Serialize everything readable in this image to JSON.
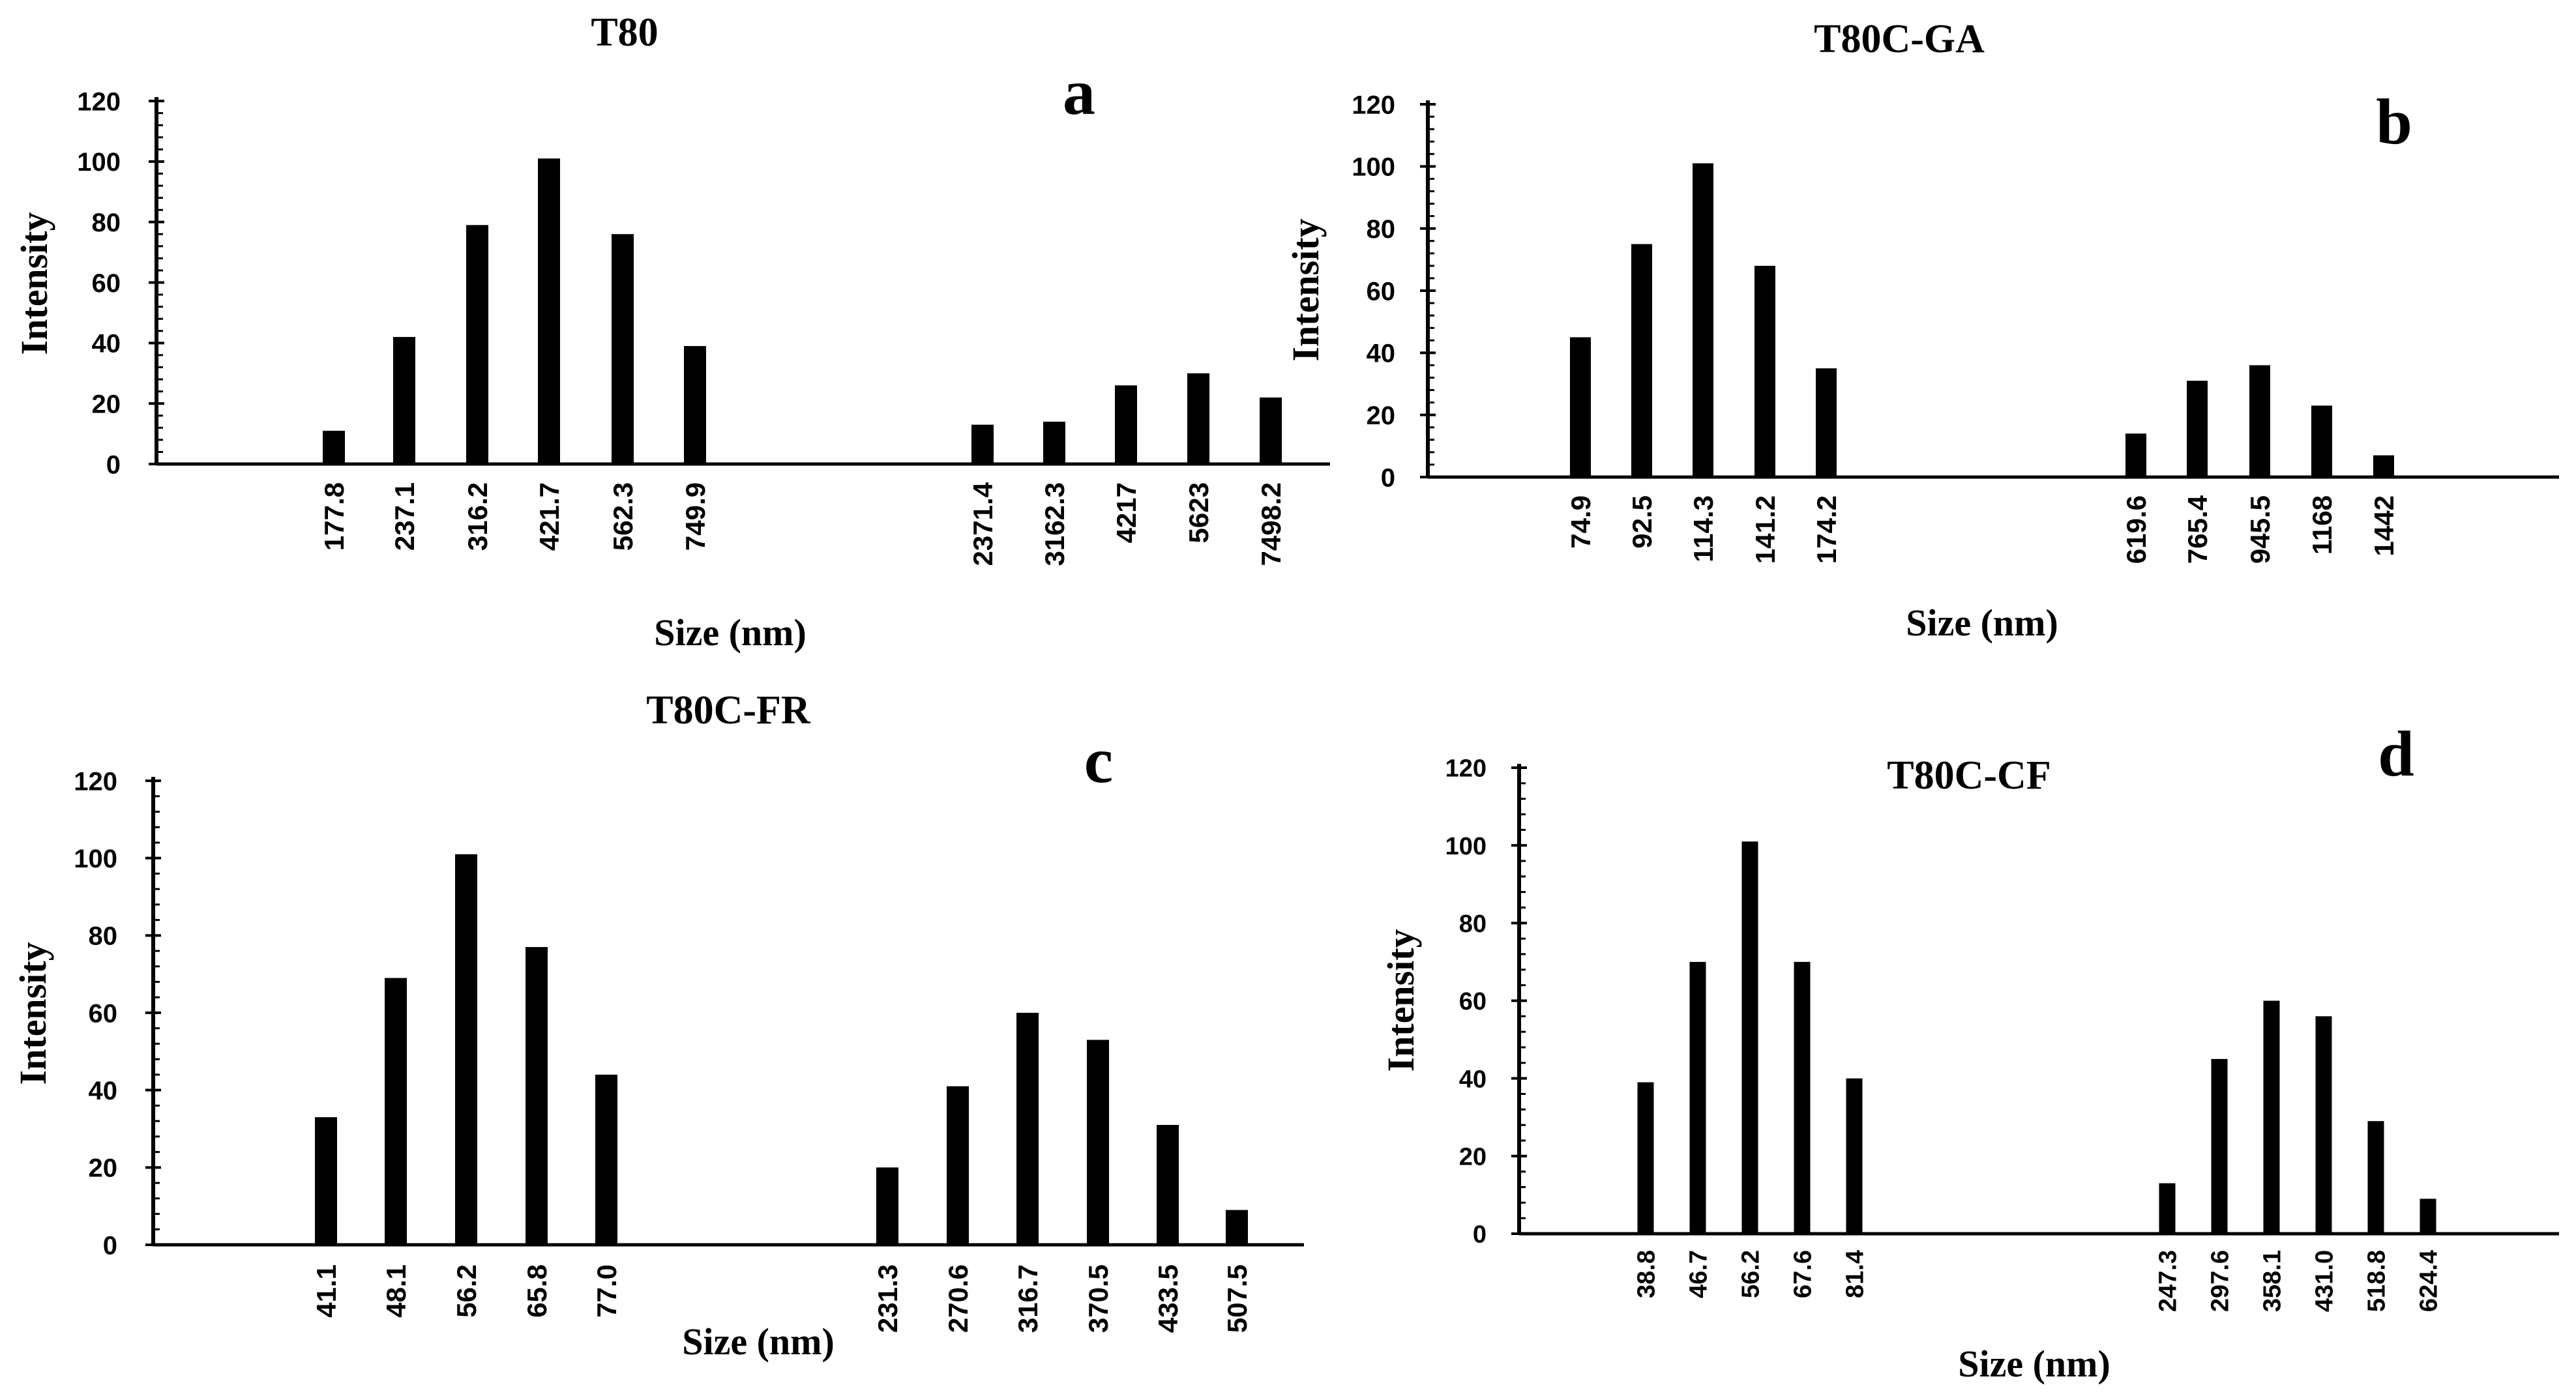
{
  "chart_data": [
    {
      "panel": "a",
      "type": "bar",
      "title": "T80",
      "xlabel": "Size (nm)",
      "ylabel": "Intensity",
      "ylim": [
        0,
        120
      ],
      "yticks": [
        0,
        20,
        40,
        60,
        80,
        100,
        120
      ],
      "grid": false,
      "categories": [
        "177.8",
        "237.1",
        "316.2",
        "421.7",
        "562.3",
        "749.9",
        "2371.4",
        "3162.3",
        "4217",
        "5623",
        "7498.2"
      ],
      "values": [
        11,
        42,
        79,
        101,
        76,
        39,
        13,
        14,
        26,
        30,
        22
      ]
    },
    {
      "panel": "b",
      "type": "bar",
      "title": "T80C-GA",
      "xlabel": "Size (nm)",
      "ylabel": "Intensity",
      "ylim": [
        0,
        120
      ],
      "yticks": [
        0,
        20,
        40,
        60,
        80,
        100,
        120
      ],
      "grid": false,
      "categories": [
        "74.9",
        "92.5",
        "114.3",
        "141.2",
        "174.2",
        "619.6",
        "765.4",
        "945.5",
        "1168",
        "1442"
      ],
      "values": [
        45,
        75,
        101,
        68,
        35,
        14,
        31,
        36,
        23,
        7
      ]
    },
    {
      "panel": "c",
      "type": "bar",
      "title": "T80C-FR",
      "xlabel": "Size (nm)",
      "ylabel": "Intensity",
      "ylim": [
        0,
        120
      ],
      "yticks": [
        0,
        20,
        40,
        60,
        80,
        100,
        120
      ],
      "grid": false,
      "categories": [
        "41.1",
        "48.1",
        "56.2",
        "65.8",
        "77.0",
        "231.3",
        "270.6",
        "316.7",
        "370.5",
        "433.5",
        "507.5"
      ],
      "values": [
        33,
        69,
        101,
        77,
        44,
        20,
        41,
        60,
        53,
        31,
        9
      ]
    },
    {
      "panel": "d",
      "type": "bar",
      "title": "T80C-CF",
      "xlabel": "Size (nm)",
      "ylabel": "Intensity",
      "ylim": [
        0,
        120
      ],
      "yticks": [
        0,
        20,
        40,
        60,
        80,
        100,
        120
      ],
      "grid": false,
      "categories": [
        "38.8",
        "46.7",
        "56.2",
        "67.6",
        "81.4",
        "247.3",
        "297.6",
        "358.1",
        "431.0",
        "518.8",
        "624.4"
      ],
      "values": [
        39,
        70,
        101,
        70,
        40,
        13,
        45,
        60,
        56,
        29,
        9
      ]
    }
  ]
}
